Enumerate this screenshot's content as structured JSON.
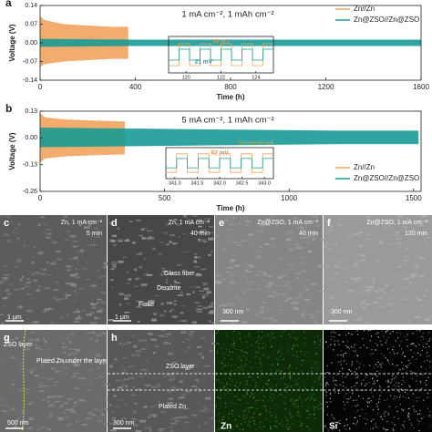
{
  "chart_data": [
    {
      "type": "band",
      "panel": "a",
      "xlabel": "Time (h)",
      "ylabel": "Voltage (V)",
      "annotation": "1 mA cm⁻², 1 mAh cm⁻²",
      "xlim": [
        0,
        1600
      ],
      "xticks": [
        0,
        400,
        800,
        1200,
        1600
      ],
      "ylim": [
        -0.14,
        0.14
      ],
      "yticks": [
        -0.14,
        -0.07,
        {
          "value": 0,
          "label": "0.00"
        },
        0.07,
        0.14
      ],
      "legend": "upper right",
      "series": [
        {
          "name": "Zn//Zn",
          "color": "#f0a35e",
          "x": [
            0,
            20,
            100,
            200,
            300,
            370
          ],
          "high": [
            0.1,
            0.085,
            0.07,
            0.065,
            0.06,
            0.06
          ],
          "low": [
            -0.09,
            -0.08,
            -0.07,
            -0.065,
            -0.06,
            -0.06
          ]
        },
        {
          "name": "Zn@ZSO//Zn@ZSO",
          "color": "#1a9a96",
          "x": [
            0,
            400,
            800,
            1200,
            1600
          ],
          "high": [
            0.015,
            0.012,
            0.012,
            0.012,
            0.012
          ],
          "low": [
            -0.015,
            -0.012,
            -0.012,
            -0.012,
            -0.012
          ]
        }
      ],
      "inset": {
        "xlim": [
          119,
          125
        ],
        "xticks": [
          120,
          122,
          124
        ],
        "annotations": [
          "48 mV",
          "21 mV"
        ]
      }
    },
    {
      "type": "band",
      "panel": "b",
      "xlabel": "Time (h)",
      "ylabel": "Voltage (V)",
      "annotation": "5 mA cm⁻², 1 mAh cm⁻²",
      "xlim": [
        0,
        1530
      ],
      "xticks": [
        0,
        500,
        1000,
        1500
      ],
      "ylim": [
        -0.26,
        0.13
      ],
      "yticks": [
        -0.26,
        -0.13,
        {
          "value": 0,
          "label": "0.00"
        },
        0.13
      ],
      "legend": "lower right",
      "series": [
        {
          "name": "Zn//Zn",
          "color": "#f0a35e",
          "x": [
            0,
            20,
            100,
            200,
            340
          ],
          "high": [
            0.12,
            0.1,
            0.09,
            0.085,
            0.08
          ],
          "low": [
            -0.12,
            -0.1,
            -0.09,
            -0.085,
            -0.08
          ]
        },
        {
          "name": "Zn@ZSO//Zn@ZSO",
          "color": "#1a9a96",
          "x": [
            0,
            400,
            800,
            1200,
            1520
          ],
          "high": [
            0.05,
            0.045,
            0.04,
            0.035,
            0.035
          ],
          "low": [
            -0.045,
            -0.04,
            -0.035,
            -0.03,
            -0.03
          ]
        }
      ],
      "inset": {
        "xlim": [
          340.8,
          343.2
        ],
        "xticks": [
          {
            "value": 341,
            "label": "341.0"
          },
          341.5,
          {
            "value": 342,
            "label": "342.0"
          },
          342.5,
          {
            "value": 343,
            "label": "343.0"
          }
        ],
        "annotations": [
          "62 mV",
          "Short circuit"
        ]
      }
    }
  ],
  "panels": [
    {
      "label": "c",
      "texts": [
        "Zn, 1 mA cm⁻²",
        "5 min",
        "1 μm"
      ]
    },
    {
      "label": "d",
      "texts": [
        "Zn, 1 mA cm⁻²",
        "40 min",
        "Glass fiber",
        "Dendrite",
        "Flake",
        "1 μm"
      ]
    },
    {
      "label": "e",
      "texts": [
        "Zn@ZSO, 1 mA cm⁻²",
        "40 min",
        "300 nm"
      ]
    },
    {
      "label": "f",
      "texts": [
        "Zn@ZSO, 1 mA cm⁻²",
        "120 min",
        "300 nm"
      ]
    },
    {
      "label": "g",
      "texts": [
        "ZSO layer",
        "Plated Zn under the layer",
        "500 nm"
      ]
    },
    {
      "label": "h",
      "texts": [
        "ZSO layer",
        "Plated Zn",
        "300 nm"
      ]
    },
    {
      "label": "Zn",
      "texts": []
    },
    {
      "label": "Si",
      "texts": []
    }
  ]
}
